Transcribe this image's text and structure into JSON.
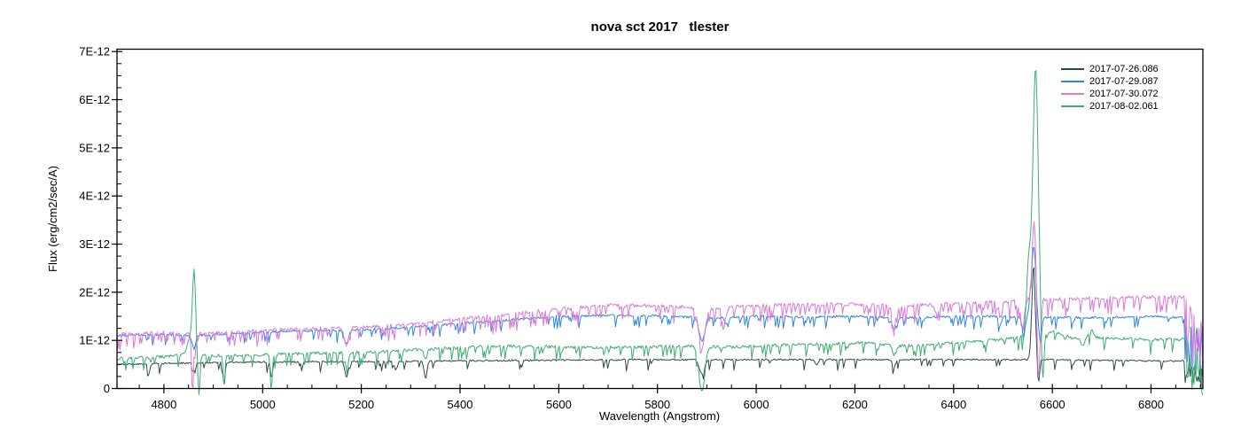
{
  "title": "nova sct 2017   tlester",
  "chart_data": {
    "type": "line",
    "title": "nova sct 2017   tlester",
    "xlabel": "Wavelength (Angstrom)",
    "ylabel": "Flux (erg/cm2/sec/A)",
    "xlim": [
      4705,
      6905
    ],
    "ylim": [
      0,
      7.05
    ],
    "flux_unit_note": "all flux values below are in units of 1e-12 erg/cm2/sec/A",
    "grid": false,
    "legend_position": "top-right-inside",
    "x_ticks_major": [
      4800,
      5000,
      5200,
      5400,
      5600,
      5800,
      6000,
      6200,
      6400,
      6600,
      6800
    ],
    "x_tick_minor_step": 50,
    "y_ticks_major": [
      {
        "v": 0,
        "label": "0"
      },
      {
        "v": 1,
        "label": "1E-12"
      },
      {
        "v": 2,
        "label": "2E-12"
      },
      {
        "v": 3,
        "label": "3E-12"
      },
      {
        "v": 4,
        "label": "4E-12"
      },
      {
        "v": 5,
        "label": "5E-12"
      },
      {
        "v": 6,
        "label": "6E-12"
      },
      {
        "v": 7,
        "label": "7E-12"
      }
    ],
    "y_tick_minor_step": 0.25,
    "sample_step": 2,
    "series": [
      {
        "name": "2017-07-26.086",
        "color": "#2F4A4A",
        "seed": 11,
        "noise": 0.016,
        "jag": {
          "p": 0.06,
          "d": 0.22
        },
        "anchors": [
          [
            4705,
            0.5
          ],
          [
            4800,
            0.52
          ],
          [
            4900,
            0.54
          ],
          [
            5000,
            0.55
          ],
          [
            5200,
            0.56
          ],
          [
            5400,
            0.575
          ],
          [
            5600,
            0.59
          ],
          [
            5800,
            0.6
          ],
          [
            6000,
            0.6
          ],
          [
            6300,
            0.6
          ],
          [
            6550,
            0.6
          ],
          [
            6600,
            0.6
          ],
          [
            6750,
            0.58
          ],
          [
            6868,
            0.57
          ],
          [
            6905,
            0.55
          ]
        ],
        "features": [
          {
            "c": 4770,
            "w": 3,
            "a": -0.18
          },
          {
            "c": 4861,
            "w": 4,
            "a": -0.16
          },
          {
            "c": 4922,
            "w": 3,
            "a": -0.42
          },
          {
            "c": 5018,
            "w": 3,
            "a": -0.35
          },
          {
            "c": 5170,
            "w": 5,
            "a": -0.32
          },
          {
            "c": 5270,
            "w": 4,
            "a": -0.18
          },
          {
            "c": 5330,
            "w": 4,
            "a": -0.36
          },
          {
            "c": 5890,
            "w": 7,
            "a": -0.3
          },
          {
            "c": 6122,
            "w": 4,
            "a": -0.12
          },
          {
            "c": 6280,
            "w": 5,
            "a": -0.12
          },
          {
            "c": 6562,
            "w": 5,
            "a": 2.0
          },
          {
            "c": 6572,
            "w": 3,
            "a": -0.52
          }
        ],
        "band": {
          "from": 6868,
          "drop": 0.5,
          "noise": 0.05
        }
      },
      {
        "name": "2017-07-29.087",
        "color": "#2E86E4",
        "seed": 23,
        "noise": 0.022,
        "jag": {
          "p": 0.08,
          "d": 0.25
        },
        "anchors": [
          [
            4705,
            1.1
          ],
          [
            4800,
            1.12
          ],
          [
            4860,
            1.1
          ],
          [
            4900,
            1.12
          ],
          [
            5000,
            1.17
          ],
          [
            5100,
            1.2
          ],
          [
            5200,
            1.22
          ],
          [
            5300,
            1.27
          ],
          [
            5400,
            1.35
          ],
          [
            5500,
            1.42
          ],
          [
            5600,
            1.5
          ],
          [
            5700,
            1.52
          ],
          [
            5800,
            1.51
          ],
          [
            5900,
            1.47
          ],
          [
            6000,
            1.5
          ],
          [
            6100,
            1.49
          ],
          [
            6200,
            1.5
          ],
          [
            6300,
            1.47
          ],
          [
            6400,
            1.5
          ],
          [
            6500,
            1.5
          ],
          [
            6530,
            1.48
          ],
          [
            6550,
            1.5
          ],
          [
            6585,
            1.48
          ],
          [
            6700,
            1.47
          ],
          [
            6800,
            1.5
          ],
          [
            6868,
            1.47
          ],
          [
            6905,
            1.2
          ]
        ],
        "features": [
          {
            "c": 4861,
            "w": 5,
            "a": -0.28
          },
          {
            "c": 5170,
            "w": 6,
            "a": -0.28
          },
          {
            "c": 5890,
            "w": 8,
            "a": -0.5
          },
          {
            "c": 5940,
            "w": 5,
            "a": -0.15
          },
          {
            "c": 6280,
            "w": 6,
            "a": -0.25
          },
          {
            "c": 6495,
            "w": 4,
            "a": -0.15
          },
          {
            "c": 6542,
            "w": 5,
            "a": -0.32
          },
          {
            "c": 6562,
            "w": 7,
            "a": 1.45
          },
          {
            "c": 6575,
            "w": 4,
            "a": -0.55
          }
        ],
        "band": {
          "from": 6868,
          "drop": 1.0,
          "noise": 0.08
        }
      },
      {
        "name": "2017-07-30.072",
        "color": "#DA79DA",
        "seed": 37,
        "noise": 0.035,
        "jag": {
          "p": 0.2,
          "d": 0.35
        },
        "anchors": [
          [
            4705,
            1.13
          ],
          [
            4800,
            1.16
          ],
          [
            4860,
            1.13
          ],
          [
            4900,
            1.15
          ],
          [
            5000,
            1.21
          ],
          [
            5100,
            1.24
          ],
          [
            5200,
            1.27
          ],
          [
            5300,
            1.33
          ],
          [
            5400,
            1.44
          ],
          [
            5500,
            1.55
          ],
          [
            5600,
            1.65
          ],
          [
            5700,
            1.73
          ],
          [
            5800,
            1.72
          ],
          [
            5900,
            1.66
          ],
          [
            6000,
            1.72
          ],
          [
            6100,
            1.75
          ],
          [
            6200,
            1.75
          ],
          [
            6300,
            1.71
          ],
          [
            6400,
            1.77
          ],
          [
            6500,
            1.8
          ],
          [
            6550,
            1.84
          ],
          [
            6600,
            1.85
          ],
          [
            6700,
            1.88
          ],
          [
            6800,
            1.9
          ],
          [
            6868,
            1.9
          ],
          [
            6905,
            1.45
          ]
        ],
        "features": [
          {
            "c": 4858,
            "w": 2.5,
            "a": -1.12
          },
          {
            "c": 4861,
            "w": 5,
            "a": -0.2
          },
          {
            "c": 5170,
            "w": 6,
            "a": -0.38
          },
          {
            "c": 5890,
            "w": 9,
            "a": -0.8
          },
          {
            "c": 5935,
            "w": 6,
            "a": -0.3
          },
          {
            "c": 6280,
            "w": 6,
            "a": -0.33
          },
          {
            "c": 6365,
            "w": 5,
            "a": -0.2
          },
          {
            "c": 6495,
            "w": 4,
            "a": -0.2
          },
          {
            "c": 6540,
            "w": 5,
            "a": -0.45
          },
          {
            "c": 6563,
            "w": 6,
            "a": 1.62
          },
          {
            "c": 6572,
            "w": 4,
            "a": -1.75
          }
        ],
        "band": {
          "from": 6868,
          "drop": 1.5,
          "noise": 0.06
        }
      },
      {
        "name": "2017-08-02.061",
        "color": "#3DAD6F",
        "seed": 51,
        "noise": 0.03,
        "jag": {
          "p": 0.1,
          "d": 0.28
        },
        "anchors": [
          [
            4705,
            0.62
          ],
          [
            4800,
            0.66
          ],
          [
            4845,
            0.72
          ],
          [
            4880,
            0.7
          ],
          [
            4900,
            0.68
          ],
          [
            5000,
            0.7
          ],
          [
            5100,
            0.73
          ],
          [
            5200,
            0.75
          ],
          [
            5300,
            0.8
          ],
          [
            5400,
            0.85
          ],
          [
            5480,
            0.88
          ],
          [
            5550,
            0.87
          ],
          [
            5650,
            0.85
          ],
          [
            5750,
            0.86
          ],
          [
            5850,
            0.88
          ],
          [
            5950,
            0.86
          ],
          [
            6050,
            0.9
          ],
          [
            6150,
            0.93
          ],
          [
            6230,
            0.95
          ],
          [
            6300,
            0.88
          ],
          [
            6400,
            0.95
          ],
          [
            6480,
            1.0
          ],
          [
            6520,
            1.05
          ],
          [
            6600,
            1.18
          ],
          [
            6640,
            1.05
          ],
          [
            6700,
            1.05
          ],
          [
            6800,
            1.02
          ],
          [
            6868,
            1.02
          ],
          [
            6905,
            0.78
          ]
        ],
        "features": [
          {
            "c": 4852,
            "w": 6,
            "a": 0.35
          },
          {
            "c": 4861,
            "w": 4.5,
            "a": 1.75
          },
          {
            "c": 4871,
            "w": 3,
            "a": -0.85
          },
          {
            "c": 4922,
            "w": 2.5,
            "a": -0.68
          },
          {
            "c": 5018,
            "w": 2.5,
            "a": -0.7
          },
          {
            "c": 5170,
            "w": 5,
            "a": -0.28
          },
          {
            "c": 5330,
            "w": 4,
            "a": -0.22
          },
          {
            "c": 5890,
            "w": 8,
            "a": -0.95
          },
          {
            "c": 6280,
            "w": 5,
            "a": -0.2
          },
          {
            "c": 6552,
            "w": 6,
            "a": 1.45
          },
          {
            "c": 6566,
            "w": 8,
            "a": 5.55
          },
          {
            "c": 6580,
            "w": 4,
            "a": -1.15
          },
          {
            "c": 6662,
            "w": 6,
            "a": -0.15
          },
          {
            "c": 6678,
            "w": 8,
            "a": 0.16
          }
        ],
        "band": {
          "from": 6868,
          "drop": 0.9,
          "noise": 0.08
        }
      }
    ]
  }
}
